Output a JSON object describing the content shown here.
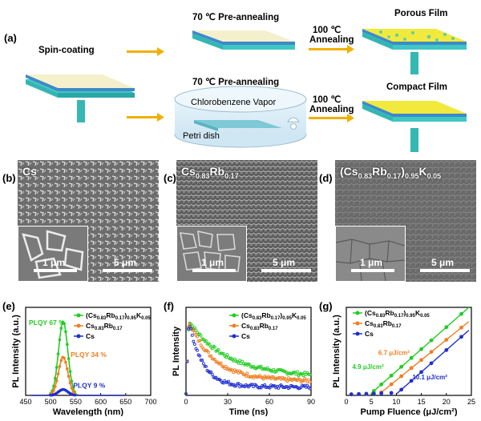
{
  "schematic": {
    "panel_label": "(a)",
    "spin_coating": "Spin-coating",
    "preanneal_top": "70 ℃ Pre-annealing",
    "preanneal_bottom": "70 ℃ Pre-annealing",
    "anneal_top_1": "100 ℃",
    "anneal_top_2": "Annealing",
    "anneal_bottom_1": "100 ℃",
    "anneal_bottom_2": "Annealing",
    "porous": "Porous Film",
    "compact": "Compact Film",
    "vapor": "Chlorobenzene Vapor",
    "petri": "Petri dish",
    "colors": {
      "glass": "#f4f0cc",
      "substrate_teal": "#3fc7c4",
      "film_yellow": "#f1ea3c",
      "arrow": "#f0b000"
    }
  },
  "sem": [
    {
      "panel_label": "(b)",
      "title_main": "Cs",
      "title_sub": "",
      "inset_scale": "1 μm",
      "main_scale": "5 μm"
    },
    {
      "panel_label": "(c)",
      "title_main": "Cs",
      "title_sub": "0.83",
      "title_main2": "Rb",
      "title_sub2": "0.17",
      "inset_scale": "1 μm",
      "main_scale": "5 μm"
    },
    {
      "panel_label": "(d)",
      "title_pre": "(Cs",
      "title_sub": "0.83",
      "title_mid": "Rb",
      "title_sub2": "0.17",
      "title_post": ")",
      "title_sub3": "0.95",
      "title_end": "K",
      "title_sub4": "0.05",
      "inset_scale": "1 μm",
      "main_scale": "5 μm"
    }
  ],
  "chart_data": [
    {
      "panel_label": "(e)",
      "type": "line",
      "xlabel": "Wavelength (nm)",
      "ylabel": "PL Intensity (a.u.)",
      "xlim": [
        450,
        700
      ],
      "xticks": [
        450,
        500,
        550,
        600,
        650,
        700
      ],
      "series": [
        {
          "name": "(Cs0.83Rb0.17)0.95K0.05",
          "color": "#22cc22",
          "peak_x": 525,
          "peak_y": 1.0,
          "fwhm": 22
        },
        {
          "name": "Cs0.83Rb0.17",
          "color": "#f07e20",
          "peak_x": 525,
          "peak_y": 0.52,
          "fwhm": 22
        },
        {
          "name": "Cs",
          "color": "#1f2fd0",
          "peak_x": 525,
          "peak_y": 0.08,
          "fwhm": 22
        }
      ],
      "annotations": [
        "PLQY 67 %",
        "PLQY 34 %",
        "PLQY 9 %"
      ]
    },
    {
      "panel_label": "(f)",
      "type": "scatter",
      "xlabel": "Time (ns)",
      "ylabel": "PL Intensity",
      "xlim": [
        0,
        90
      ],
      "xticks": [
        0,
        30,
        60,
        90
      ],
      "series": [
        {
          "name": "(Cs0.83Rb0.17)0.95K0.05",
          "color": "#22cc22",
          "tau": 26,
          "floor": 0.32
        },
        {
          "name": "Cs0.83Rb0.17",
          "color": "#f07e20",
          "tau": 18,
          "floor": 0.22
        },
        {
          "name": "Cs",
          "color": "#1f2fd0",
          "tau": 10,
          "floor": 0.12
        }
      ]
    },
    {
      "panel_label": "(g)",
      "type": "scatter",
      "xlabel": "Pump Fluence (μJ/cm²)",
      "ylabel": "PL Intensity (a.u.)",
      "xlim": [
        0,
        25
      ],
      "xticks": [
        0,
        5,
        10,
        15,
        20,
        25
      ],
      "series": [
        {
          "name": "(Cs0.83Rb0.17)0.95K0.05",
          "color": "#22cc22",
          "threshold": 4.9
        },
        {
          "name": "Cs0.83Rb0.17",
          "color": "#f07e20",
          "threshold": 6.7
        },
        {
          "name": "Cs",
          "color": "#1f2fd0",
          "threshold": 10.1
        }
      ],
      "annotations": [
        "4.9 μJ/cm²",
        "6.7 μJ/cm²",
        "10.1 μJ/cm²"
      ]
    }
  ],
  "legend_texts": {
    "l1_pre": "(Cs",
    "l1_s1": "0.83",
    "l1_mid": "Rb",
    "l1_s2": "0.17",
    "l1_post": ")",
    "l1_s3": "0.95",
    "l1_end": "K",
    "l1_s4": "0.05",
    "l2_pre": "Cs",
    "l2_s1": "0.83",
    "l2_mid": "Rb",
    "l2_s2": "0.17",
    "l3": "Cs"
  }
}
